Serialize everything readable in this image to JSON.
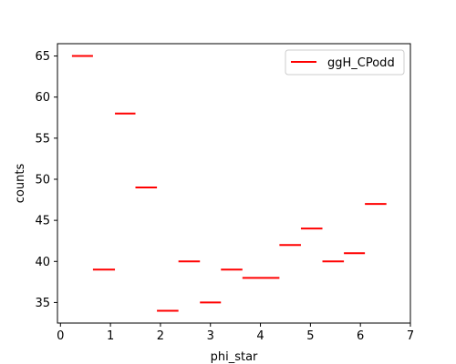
{
  "chart_data": {
    "type": "step",
    "xlabel": "phi_star",
    "ylabel": "counts",
    "xlim": [
      -0.06,
      7.0
    ],
    "ylim": [
      32.5,
      66.5
    ],
    "x_ticks": [
      0,
      1,
      2,
      3,
      4,
      5,
      6,
      7
    ],
    "y_ticks": [
      35,
      40,
      45,
      50,
      55,
      60,
      65
    ],
    "grid": false,
    "legend_position": "top-right",
    "series": [
      {
        "name": "ggH_CPodd",
        "color": "#ff0000",
        "bins": [
          {
            "x0": 0.23,
            "x1": 0.65,
            "y": 65
          },
          {
            "x0": 0.65,
            "x1": 1.09,
            "y": 39
          },
          {
            "x0": 1.09,
            "x1": 1.5,
            "y": 58
          },
          {
            "x0": 1.5,
            "x1": 1.93,
            "y": 49
          },
          {
            "x0": 1.93,
            "x1": 2.36,
            "y": 34
          },
          {
            "x0": 2.36,
            "x1": 2.79,
            "y": 40
          },
          {
            "x0": 2.79,
            "x1": 3.21,
            "y": 35
          },
          {
            "x0": 3.21,
            "x1": 3.64,
            "y": 39
          },
          {
            "x0": 3.64,
            "x1": 4.38,
            "y": 38
          },
          {
            "x0": 4.38,
            "x1": 4.81,
            "y": 42
          },
          {
            "x0": 4.81,
            "x1": 5.24,
            "y": 44
          },
          {
            "x0": 5.24,
            "x1": 5.67,
            "y": 40
          },
          {
            "x0": 5.67,
            "x1": 6.09,
            "y": 41
          },
          {
            "x0": 6.09,
            "x1": 6.52,
            "y": 47
          }
        ]
      }
    ]
  }
}
